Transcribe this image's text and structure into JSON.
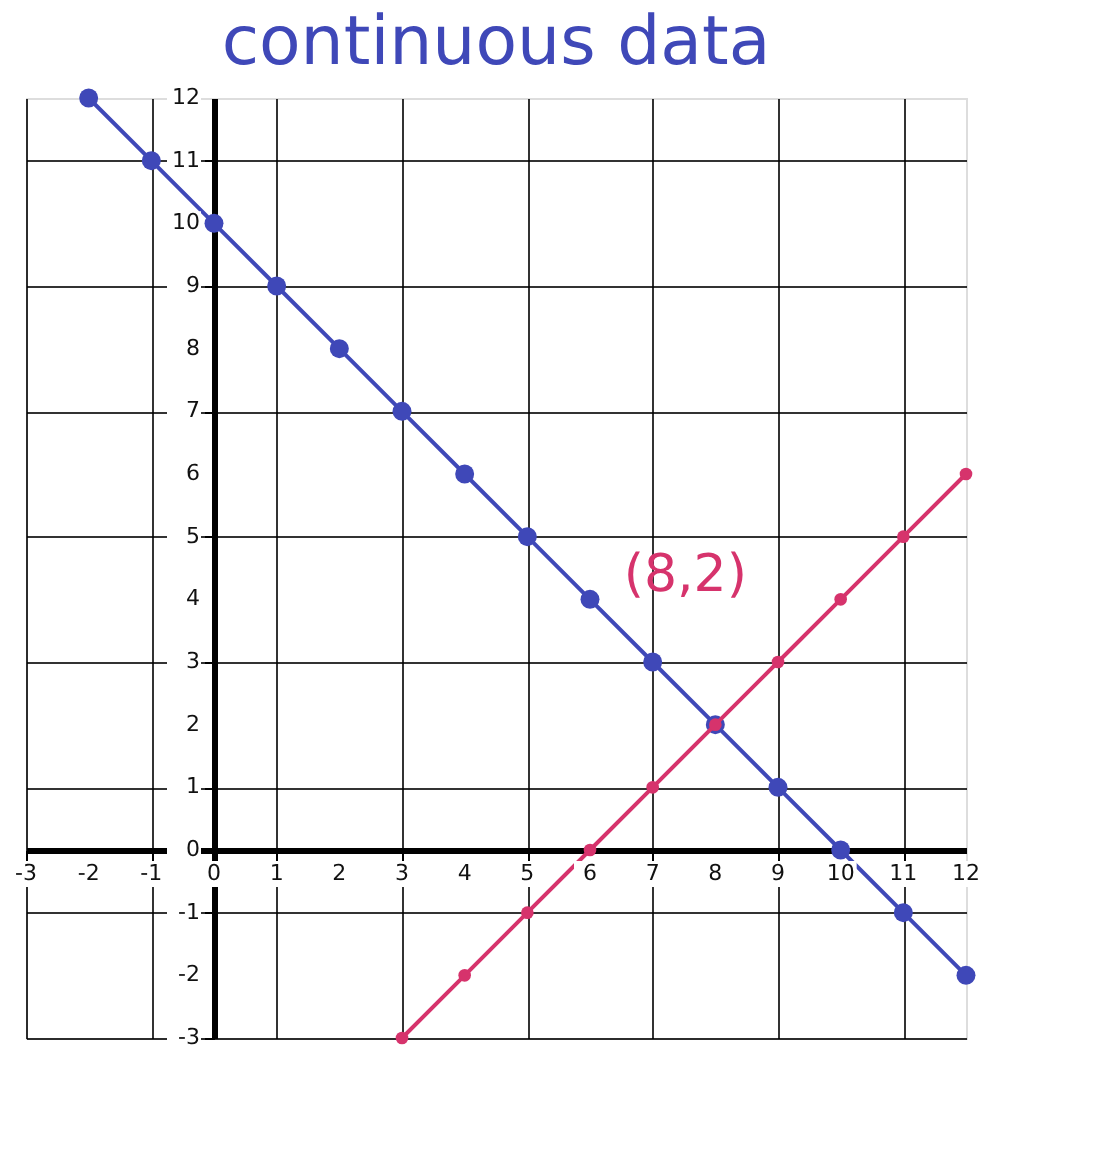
{
  "chart_data": {
    "type": "line",
    "title": "continuous data",
    "xlim": [
      -3,
      12
    ],
    "ylim": [
      -3,
      12
    ],
    "xticks": [
      -3,
      -2,
      -1,
      0,
      1,
      2,
      3,
      4,
      5,
      6,
      7,
      8,
      9,
      10,
      11,
      12
    ],
    "yticks": [
      -3,
      -2,
      -1,
      0,
      1,
      2,
      3,
      4,
      5,
      6,
      7,
      8,
      9,
      10,
      11,
      12
    ],
    "series": [
      {
        "color": "#3f48b8",
        "x": [
          -2,
          -1,
          0,
          1,
          2,
          3,
          4,
          5,
          6,
          7,
          8,
          9,
          10,
          11,
          12
        ],
        "values": [
          12,
          11,
          10,
          9,
          8,
          7,
          6,
          5,
          4,
          3,
          2,
          1,
          0,
          -1,
          -2
        ]
      },
      {
        "color": "#d6336c",
        "x": [
          3,
          4,
          5,
          6,
          7,
          8,
          9,
          10,
          11,
          12
        ],
        "values": [
          -3,
          -2,
          -1,
          0,
          1,
          2,
          3,
          4,
          5,
          6
        ]
      }
    ],
    "annotations": [
      {
        "text": "(8,2)",
        "x": 8,
        "y": 2
      }
    ],
    "marker": "circle",
    "line_style": "solid",
    "grid": true
  }
}
